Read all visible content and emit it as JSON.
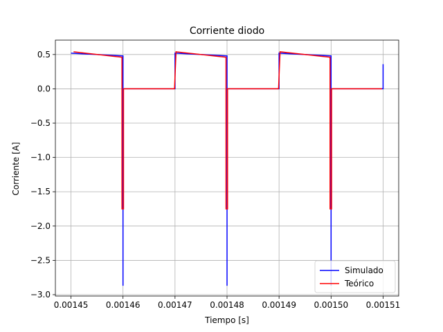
{
  "chart_data": {
    "type": "line",
    "title": "Corriente diodo",
    "xlabel": "Tiempo [s]",
    "ylabel": "Corriente [A]",
    "xlim": [
      0.001447,
      0.001513
    ],
    "ylim": [
      -3.02,
      0.71
    ],
    "xticks": [
      0.00145,
      0.00146,
      0.00147,
      0.00148,
      0.00149,
      0.0015,
      0.00151
    ],
    "xtick_labels": [
      "0.00145",
      "0.00146",
      "0.00147",
      "0.00148",
      "0.00149",
      "0.00150",
      "0.00151"
    ],
    "yticks": [
      0.5,
      0.0,
      -0.5,
      -1.0,
      -1.5,
      -2.0,
      -2.5,
      -3.0
    ],
    "ytick_labels": [
      "0.5",
      "0.0",
      "−0.5",
      "−1.0",
      "−1.5",
      "−2.0",
      "−2.5",
      "−3.0"
    ],
    "grid": true,
    "legend_position": "lower-right",
    "series": [
      {
        "name": "Simulado",
        "color": "#0000ff",
        "x": [
          0.00145,
          0.00146,
          0.00146,
          0.00146,
          0.00146,
          0.00147,
          0.00147,
          0.00147,
          0.00148,
          0.00148,
          0.00148,
          0.00148,
          0.00149,
          0.00149,
          0.00149,
          0.0015,
          0.0015,
          0.0015,
          0.0015,
          0.00151,
          0.00151
        ],
        "y": [
          0.52,
          0.48,
          0.48,
          -2.87,
          0.0,
          0.0,
          0.0,
          0.52,
          0.48,
          0.48,
          -2.87,
          0.0,
          0.0,
          0.0,
          0.52,
          0.48,
          0.48,
          -2.87,
          0.0,
          0.0,
          0.36
        ]
      },
      {
        "name": "Teórico",
        "color": "#ff0000",
        "x": [
          0.0014505,
          0.0014598,
          0.0014598,
          0.0014601,
          0.0014601,
          0.0014699,
          0.0014699,
          0.0014702,
          0.0014798,
          0.0014798,
          0.0014801,
          0.0014801,
          0.0014899,
          0.0014899,
          0.0014902,
          0.0014998,
          0.0014998,
          0.0015001,
          0.0015001,
          0.0015098
        ],
        "y": [
          0.54,
          0.46,
          -1.75,
          -1.75,
          0.0,
          0.0,
          0.0,
          0.54,
          0.46,
          -1.75,
          -1.75,
          0.0,
          0.0,
          0.0,
          0.54,
          0.46,
          -1.75,
          -1.75,
          0.0,
          0.0
        ]
      }
    ]
  }
}
